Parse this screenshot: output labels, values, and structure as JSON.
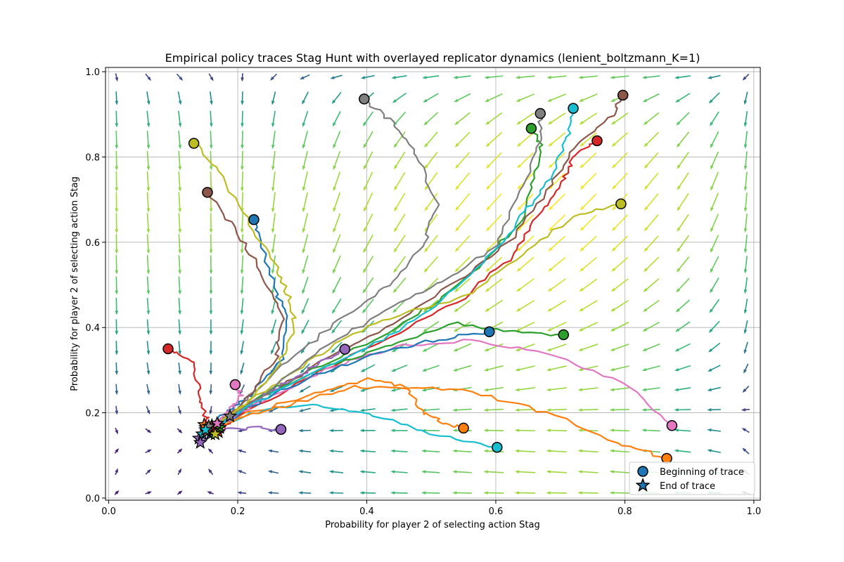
{
  "chart_data": {
    "type": "line",
    "title": "Empirical policy traces Stag Hunt with overlayed replicator dynamics (lenient_boltzmann_K=1)",
    "xlabel": "Probability for player 2 of selecting action Stag",
    "ylabel": "Probability for player 2 of selecting action Stag",
    "xlim": [
      -0.005,
      1.01
    ],
    "ylim": [
      -0.005,
      1.01
    ],
    "xticks": [
      "0.0",
      "0.2",
      "0.4",
      "0.6",
      "0.8",
      "1.0"
    ],
    "yticks": [
      "0.0",
      "0.2",
      "0.4",
      "0.6",
      "0.8",
      "1.0"
    ],
    "grid": true,
    "legend": {
      "placement": "lower-right",
      "entries": [
        "Beginning of trace",
        "End of trace"
      ]
    },
    "quiver_field": {
      "description": "replicator dynamics vector field on a 15x21 grid, arrows colored by magnitude (viridis)",
      "colormap": "viridis"
    },
    "series": [
      {
        "color": "#1f77b4",
        "points": [
          [
            0.225,
            0.653
          ],
          [
            0.235,
            0.6
          ],
          [
            0.26,
            0.48
          ],
          [
            0.275,
            0.43
          ],
          [
            0.27,
            0.33
          ],
          [
            0.22,
            0.24
          ],
          [
            0.19,
            0.21
          ],
          [
            0.16,
            0.17
          ],
          [
            0.15,
            0.165
          ]
        ]
      },
      {
        "color": "#ff7f0e",
        "points": [
          [
            0.55,
            0.164
          ],
          [
            0.52,
            0.175
          ],
          [
            0.49,
            0.2
          ],
          [
            0.46,
            0.26
          ],
          [
            0.4,
            0.28
          ],
          [
            0.33,
            0.25
          ],
          [
            0.22,
            0.2
          ],
          [
            0.16,
            0.17
          ]
        ]
      },
      {
        "color": "#2ca02c",
        "points": [
          [
            0.655,
            0.867
          ],
          [
            0.67,
            0.83
          ],
          [
            0.66,
            0.75
          ],
          [
            0.64,
            0.65
          ],
          [
            0.58,
            0.55
          ],
          [
            0.5,
            0.45
          ],
          [
            0.41,
            0.37
          ],
          [
            0.3,
            0.29
          ],
          [
            0.2,
            0.21
          ],
          [
            0.165,
            0.16
          ]
        ]
      },
      {
        "color": "#d62728",
        "points": [
          [
            0.757,
            0.838
          ],
          [
            0.72,
            0.8
          ],
          [
            0.7,
            0.73
          ],
          [
            0.66,
            0.65
          ],
          [
            0.62,
            0.56
          ],
          [
            0.55,
            0.47
          ],
          [
            0.45,
            0.39
          ],
          [
            0.33,
            0.3
          ],
          [
            0.22,
            0.21
          ],
          [
            0.17,
            0.155
          ]
        ]
      },
      {
        "color": "#9467bd",
        "points": [
          [
            0.267,
            0.161
          ],
          [
            0.23,
            0.165
          ],
          [
            0.18,
            0.16
          ],
          [
            0.14,
            0.135
          ],
          [
            0.15,
            0.15
          ]
        ]
      },
      {
        "color": "#8c564b",
        "points": [
          [
            0.797,
            0.945
          ],
          [
            0.78,
            0.9
          ],
          [
            0.72,
            0.82
          ],
          [
            0.68,
            0.72
          ],
          [
            0.62,
            0.6
          ],
          [
            0.54,
            0.51
          ],
          [
            0.44,
            0.41
          ],
          [
            0.34,
            0.33
          ],
          [
            0.22,
            0.22
          ],
          [
            0.16,
            0.16
          ]
        ]
      },
      {
        "color": "#e377c2",
        "points": [
          [
            0.873,
            0.17
          ],
          [
            0.8,
            0.27
          ],
          [
            0.68,
            0.34
          ],
          [
            0.56,
            0.37
          ],
          [
            0.46,
            0.36
          ],
          [
            0.35,
            0.31
          ],
          [
            0.24,
            0.23
          ],
          [
            0.17,
            0.17
          ]
        ]
      },
      {
        "color": "#7f7f7f",
        "points": [
          [
            0.396,
            0.936
          ],
          [
            0.44,
            0.88
          ],
          [
            0.48,
            0.8
          ],
          [
            0.51,
            0.69
          ],
          [
            0.49,
            0.6
          ],
          [
            0.44,
            0.51
          ],
          [
            0.38,
            0.44
          ],
          [
            0.3,
            0.35
          ],
          [
            0.22,
            0.24
          ],
          [
            0.17,
            0.165
          ]
        ]
      },
      {
        "color": "#bcbd22",
        "points": [
          [
            0.794,
            0.69
          ],
          [
            0.72,
            0.66
          ],
          [
            0.64,
            0.57
          ],
          [
            0.55,
            0.47
          ],
          [
            0.45,
            0.43
          ],
          [
            0.36,
            0.37
          ],
          [
            0.28,
            0.29
          ],
          [
            0.2,
            0.21
          ],
          [
            0.155,
            0.165
          ]
        ]
      },
      {
        "color": "#17becf",
        "points": [
          [
            0.602,
            0.119
          ],
          [
            0.5,
            0.15
          ],
          [
            0.4,
            0.2
          ],
          [
            0.3,
            0.22
          ],
          [
            0.22,
            0.2
          ],
          [
            0.16,
            0.16
          ]
        ]
      },
      {
        "color": "#1f77b4",
        "points": [
          [
            0.59,
            0.39
          ],
          [
            0.5,
            0.37
          ],
          [
            0.42,
            0.34
          ],
          [
            0.32,
            0.29
          ],
          [
            0.24,
            0.23
          ],
          [
            0.17,
            0.17
          ]
        ]
      },
      {
        "color": "#ff7f0e",
        "points": [
          [
            0.865,
            0.093
          ],
          [
            0.79,
            0.13
          ],
          [
            0.68,
            0.2
          ],
          [
            0.56,
            0.25
          ],
          [
            0.47,
            0.26
          ],
          [
            0.38,
            0.26
          ],
          [
            0.28,
            0.22
          ],
          [
            0.2,
            0.19
          ],
          [
            0.16,
            0.16
          ]
        ]
      },
      {
        "color": "#2ca02c",
        "points": [
          [
            0.705,
            0.383
          ],
          [
            0.62,
            0.39
          ],
          [
            0.54,
            0.41
          ],
          [
            0.44,
            0.36
          ],
          [
            0.34,
            0.31
          ],
          [
            0.24,
            0.24
          ],
          [
            0.17,
            0.17
          ]
        ]
      },
      {
        "color": "#d62728",
        "points": [
          [
            0.092,
            0.35
          ],
          [
            0.13,
            0.32
          ],
          [
            0.14,
            0.25
          ],
          [
            0.15,
            0.19
          ],
          [
            0.16,
            0.16
          ]
        ]
      },
      {
        "color": "#9467bd",
        "points": [
          [
            0.366,
            0.349
          ],
          [
            0.32,
            0.31
          ],
          [
            0.26,
            0.26
          ],
          [
            0.21,
            0.21
          ],
          [
            0.17,
            0.165
          ]
        ]
      },
      {
        "color": "#8c564b",
        "points": [
          [
            0.153,
            0.717
          ],
          [
            0.2,
            0.62
          ],
          [
            0.24,
            0.52
          ],
          [
            0.27,
            0.42
          ],
          [
            0.26,
            0.33
          ],
          [
            0.22,
            0.24
          ],
          [
            0.17,
            0.18
          ]
        ]
      },
      {
        "color": "#e377c2",
        "points": [
          [
            0.196,
            0.266
          ],
          [
            0.205,
            0.24
          ],
          [
            0.19,
            0.21
          ],
          [
            0.16,
            0.17
          ]
        ]
      },
      {
        "color": "#7f7f7f",
        "points": [
          [
            0.669,
            0.902
          ],
          [
            0.67,
            0.84
          ],
          [
            0.64,
            0.72
          ],
          [
            0.6,
            0.59
          ],
          [
            0.52,
            0.51
          ],
          [
            0.43,
            0.44
          ],
          [
            0.33,
            0.35
          ],
          [
            0.23,
            0.23
          ],
          [
            0.16,
            0.16
          ]
        ]
      },
      {
        "color": "#bcbd22",
        "points": [
          [
            0.132,
            0.832
          ],
          [
            0.17,
            0.77
          ],
          [
            0.22,
            0.64
          ],
          [
            0.26,
            0.54
          ],
          [
            0.28,
            0.47
          ],
          [
            0.29,
            0.4
          ],
          [
            0.26,
            0.3
          ],
          [
            0.21,
            0.22
          ],
          [
            0.17,
            0.17
          ]
        ]
      },
      {
        "color": "#17becf",
        "points": [
          [
            0.72,
            0.914
          ],
          [
            0.71,
            0.84
          ],
          [
            0.68,
            0.74
          ],
          [
            0.64,
            0.66
          ],
          [
            0.58,
            0.55
          ],
          [
            0.5,
            0.44
          ],
          [
            0.4,
            0.35
          ],
          [
            0.3,
            0.28
          ],
          [
            0.21,
            0.21
          ],
          [
            0.16,
            0.16
          ]
        ]
      }
    ],
    "end_points": [
      {
        "color": "#1f77b4",
        "x": 0.15,
        "y": 0.165
      },
      {
        "color": "#ff7f0e",
        "x": 0.16,
        "y": 0.17
      },
      {
        "color": "#2ca02c",
        "x": 0.165,
        "y": 0.16
      },
      {
        "color": "#d62728",
        "x": 0.17,
        "y": 0.155
      },
      {
        "color": "#9467bd",
        "x": 0.14,
        "y": 0.14
      },
      {
        "color": "#8c564b",
        "x": 0.16,
        "y": 0.16
      },
      {
        "color": "#e377c2",
        "x": 0.17,
        "y": 0.17
      },
      {
        "color": "#7f7f7f",
        "x": 0.188,
        "y": 0.192
      },
      {
        "color": "#bcbd22",
        "x": 0.155,
        "y": 0.165
      },
      {
        "color": "#17becf",
        "x": 0.145,
        "y": 0.15
      },
      {
        "color": "#1f77b4",
        "x": 0.158,
        "y": 0.15
      },
      {
        "color": "#ff7f0e",
        "x": 0.148,
        "y": 0.172
      },
      {
        "color": "#2ca02c",
        "x": 0.172,
        "y": 0.165
      },
      {
        "color": "#d62728",
        "x": 0.162,
        "y": 0.158
      },
      {
        "color": "#9467bd",
        "x": 0.142,
        "y": 0.13
      },
      {
        "color": "#8c564b",
        "x": 0.152,
        "y": 0.155
      },
      {
        "color": "#e377c2",
        "x": 0.168,
        "y": 0.175
      },
      {
        "color": "#7f7f7f",
        "x": 0.155,
        "y": 0.168
      },
      {
        "color": "#bcbd22",
        "x": 0.165,
        "y": 0.15
      },
      {
        "color": "#17becf",
        "x": 0.15,
        "y": 0.16
      }
    ]
  }
}
